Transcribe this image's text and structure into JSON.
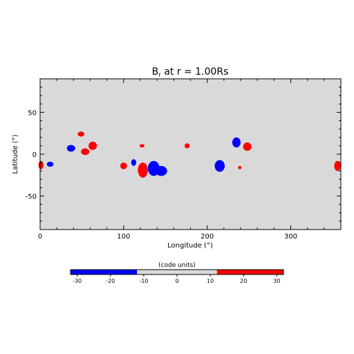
{
  "chart_data": {
    "type": "heatmap",
    "title_main": "B",
    "title_sub": "r",
    "title_rest": " at r = 1.00Rs",
    "xlabel": "Longitude (°)",
    "ylabel": "Latitude (°)",
    "xlim": [
      0,
      360
    ],
    "ylim": [
      -90,
      90
    ],
    "xticks": [
      0,
      100,
      200,
      300
    ],
    "yticks": [
      -50,
      0,
      50
    ],
    "background_color": "#d9d9d9",
    "positive_color": "#ff0000",
    "negative_color": "#0000ff",
    "features": [
      {
        "polarity": "positive",
        "lon": 1,
        "lat": -13,
        "dlon": 3,
        "dlat": 5
      },
      {
        "polarity": "negative",
        "lon": 12,
        "lat": -12,
        "dlon": 4,
        "dlat": 3
      },
      {
        "polarity": "negative",
        "lon": 37,
        "lat": 7,
        "dlon": 5,
        "dlat": 4
      },
      {
        "polarity": "positive",
        "lon": 49,
        "lat": 24,
        "dlon": 4,
        "dlat": 3
      },
      {
        "polarity": "positive",
        "lon": 54,
        "lat": 3,
        "dlon": 5,
        "dlat": 4
      },
      {
        "polarity": "positive",
        "lon": 63,
        "lat": 10,
        "dlon": 5,
        "dlat": 5
      },
      {
        "polarity": "positive",
        "lon": 100,
        "lat": -14,
        "dlon": 4,
        "dlat": 4
      },
      {
        "polarity": "negative",
        "lon": 112,
        "lat": -10,
        "dlon": 3,
        "dlat": 4
      },
      {
        "polarity": "positive",
        "lon": 122,
        "lat": 10,
        "dlon": 3,
        "dlat": 2
      },
      {
        "polarity": "positive",
        "lon": 123,
        "lat": -19,
        "dlon": 6,
        "dlat": 9
      },
      {
        "polarity": "negative",
        "lon": 136,
        "lat": -17,
        "dlon": 7,
        "dlat": 9
      },
      {
        "polarity": "negative",
        "lon": 145,
        "lat": -20,
        "dlon": 7,
        "dlat": 6
      },
      {
        "polarity": "positive",
        "lon": 176,
        "lat": 10,
        "dlon": 3,
        "dlat": 3
      },
      {
        "polarity": "negative",
        "lon": 215,
        "lat": -14,
        "dlon": 6,
        "dlat": 7
      },
      {
        "polarity": "negative",
        "lon": 235,
        "lat": 14,
        "dlon": 5,
        "dlat": 6
      },
      {
        "polarity": "positive",
        "lon": 248,
        "lat": 9,
        "dlon": 5,
        "dlat": 5
      },
      {
        "polarity": "positive",
        "lon": 239,
        "lat": -16,
        "dlon": 2,
        "dlat": 2
      },
      {
        "polarity": "positive",
        "lon": 356,
        "lat": -14,
        "dlon": 4,
        "dlat": 6
      }
    ],
    "colorbar": {
      "label": "(code units)",
      "range": [
        -32,
        32
      ],
      "ticks": [
        -30,
        -20,
        -10,
        0,
        10,
        20,
        30
      ],
      "segments": [
        {
          "from": -32,
          "to": -12,
          "color": "#0000ff"
        },
        {
          "from": -12,
          "to": 12,
          "color": "#d9d9d9"
        },
        {
          "from": 12,
          "to": 32,
          "color": "#ff0000"
        }
      ]
    }
  }
}
